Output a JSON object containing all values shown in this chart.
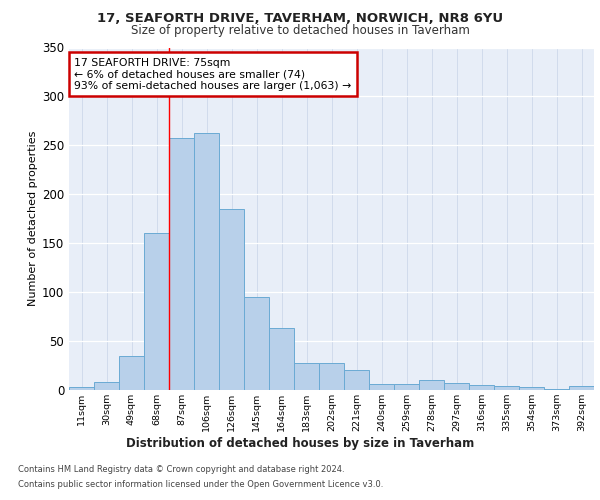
{
  "title": "17, SEAFORTH DRIVE, TAVERHAM, NORWICH, NR8 6YU",
  "subtitle": "Size of property relative to detached houses in Taverham",
  "xlabel": "Distribution of detached houses by size in Taverham",
  "ylabel": "Number of detached properties",
  "categories": [
    "11sqm",
    "30sqm",
    "49sqm",
    "68sqm",
    "87sqm",
    "106sqm",
    "126sqm",
    "145sqm",
    "164sqm",
    "183sqm",
    "202sqm",
    "221sqm",
    "240sqm",
    "259sqm",
    "278sqm",
    "297sqm",
    "316sqm",
    "335sqm",
    "354sqm",
    "373sqm",
    "392sqm"
  ],
  "values": [
    3,
    8,
    35,
    160,
    258,
    263,
    185,
    95,
    63,
    28,
    28,
    20,
    6,
    6,
    10,
    7,
    5,
    4,
    3,
    1,
    4
  ],
  "bar_color": "#b8d0ea",
  "bar_edge_color": "#6aaad4",
  "vline_x": 3.5,
  "annotation_text": "17 SEAFORTH DRIVE: 75sqm\n← 6% of detached houses are smaller (74)\n93% of semi-detached houses are larger (1,063) →",
  "annotation_box_color": "#ffffff",
  "annotation_box_edge_color": "#cc0000",
  "ylim": [
    0,
    350
  ],
  "yticks": [
    0,
    50,
    100,
    150,
    200,
    250,
    300,
    350
  ],
  "bg_color": "#e8eef8",
  "footer_line1": "Contains HM Land Registry data © Crown copyright and database right 2024.",
  "footer_line2": "Contains public sector information licensed under the Open Government Licence v3.0."
}
